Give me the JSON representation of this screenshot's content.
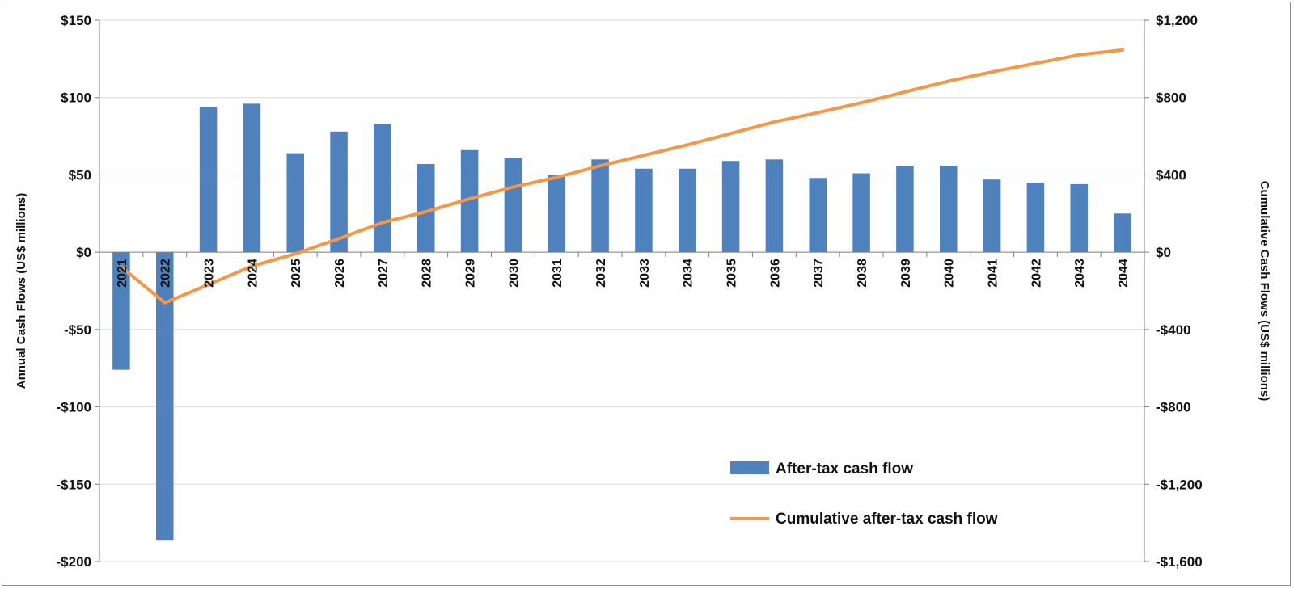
{
  "chart_data": {
    "type": "bar",
    "categories": [
      "2021",
      "2022",
      "2023",
      "2024",
      "2025",
      "2026",
      "2027",
      "2028",
      "2029",
      "2030",
      "2031",
      "2032",
      "2033",
      "2034",
      "2035",
      "2036",
      "2037",
      "2038",
      "2039",
      "2040",
      "2041",
      "2042",
      "2043",
      "2044"
    ],
    "series": [
      {
        "name": "After-tax cash flow",
        "type": "bar",
        "axis": "left",
        "color": "#4f81bd",
        "values": [
          -76,
          -186,
          94,
          96,
          64,
          78,
          83,
          57,
          66,
          61,
          50,
          60,
          54,
          54,
          59,
          60,
          48,
          51,
          56,
          56,
          47,
          45,
          44,
          25
        ]
      },
      {
        "name": "Cumulative after-tax cash flow",
        "type": "line",
        "axis": "right",
        "color": "#f79646",
        "values": [
          -76,
          -262,
          -168,
          -72,
          -8,
          70,
          153,
          210,
          276,
          337,
          387,
          447,
          501,
          555,
          614,
          674,
          722,
          773,
          829,
          885,
          932,
          977,
          1021,
          1046
        ]
      }
    ],
    "y_left": {
      "label": "Annual Cash Flows (US$ millions)",
      "ylim": [
        -200,
        150
      ],
      "ticks": [
        150,
        100,
        50,
        0,
        -50,
        -100,
        -150,
        -200
      ],
      "tick_labels": [
        "$150",
        "$100",
        "$50",
        "$0",
        "-$50",
        "-$100",
        "-$150",
        "-$200"
      ]
    },
    "y_right": {
      "label": "Cumulative Cash Flows (US$ millions)",
      "ylim": [
        -1600,
        1200
      ],
      "ticks": [
        1200,
        800,
        400,
        0,
        -400,
        -800,
        -1200,
        -1600
      ],
      "tick_labels": [
        "$1,200",
        "$800",
        "$400",
        "$0",
        "-$400",
        "-$800",
        "-$1,200",
        "-$1,600"
      ]
    },
    "grid": true,
    "legend_position": "bottom-right"
  }
}
